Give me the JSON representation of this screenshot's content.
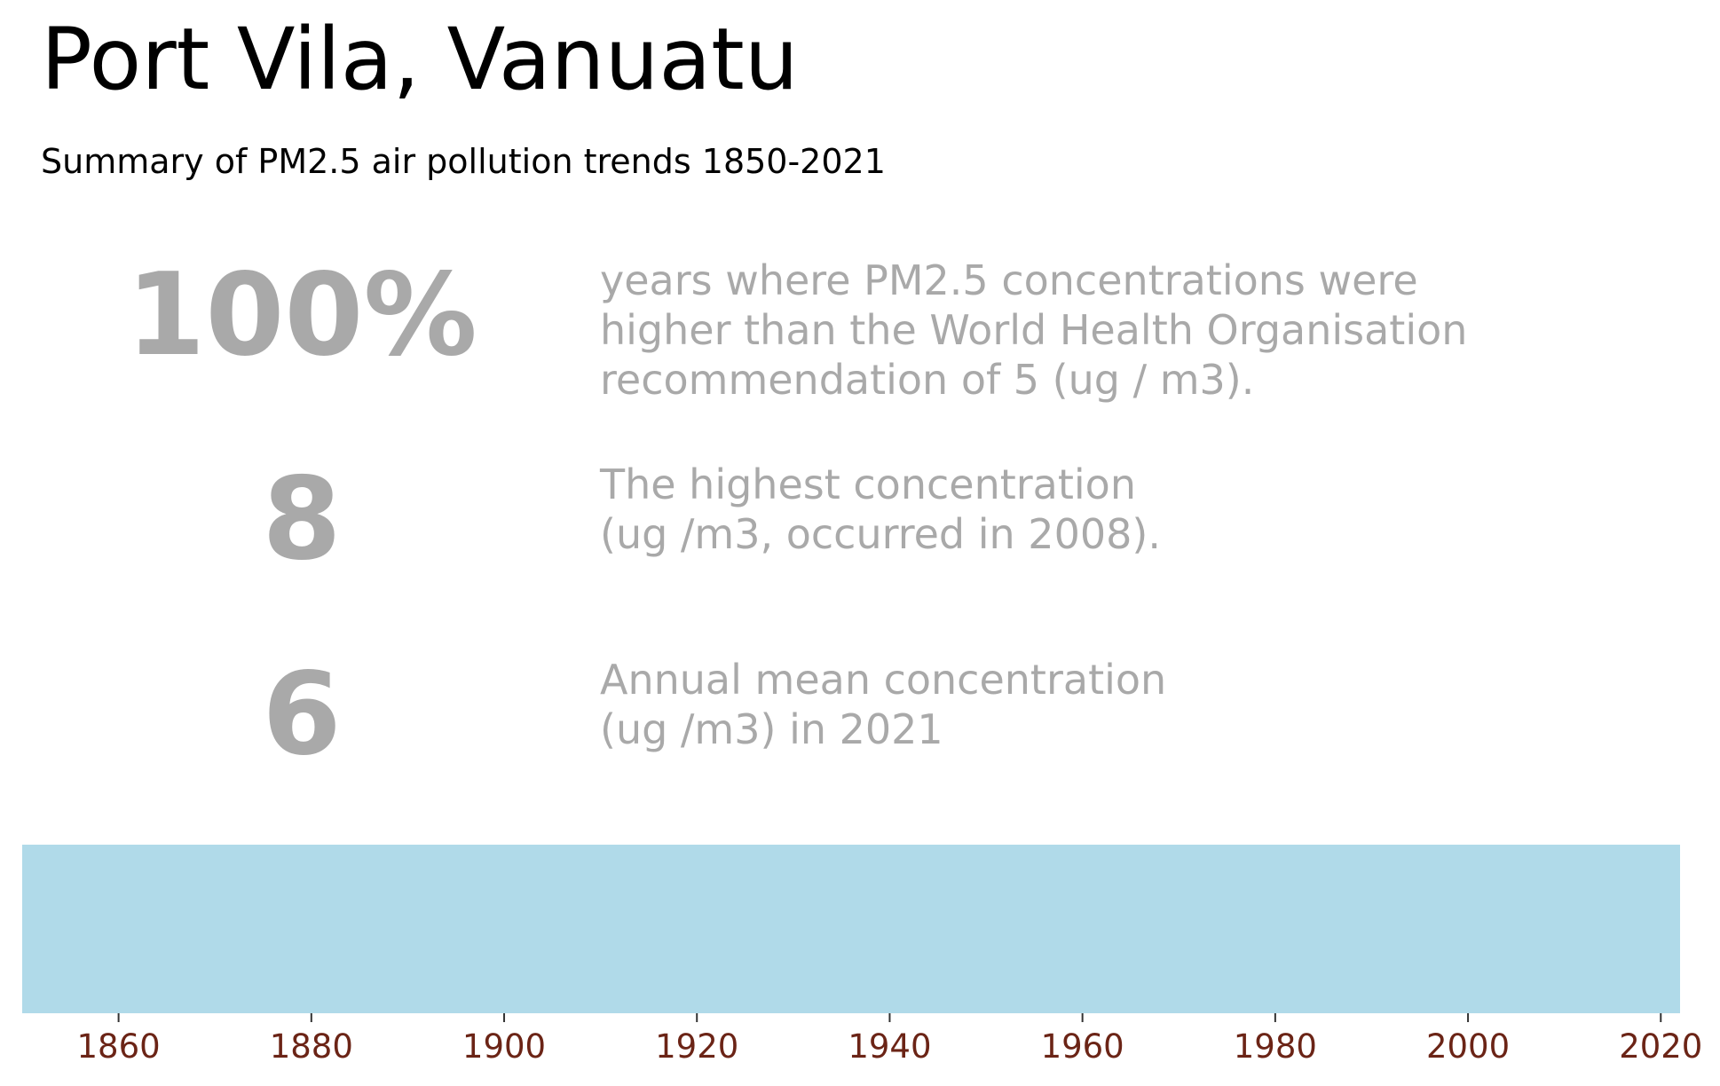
{
  "title": "Port Vila, Vanuatu",
  "subtitle": "Summary of PM2.5 air pollution trends 1850-2021",
  "stats": [
    {
      "value": "100%",
      "description": "years where PM2.5 concentrations were\nhigher than the World Health Organisation\nrecommendation of 5 (ug / m3)."
    },
    {
      "value": "8",
      "description": "The highest concentration\n(ug /m3, occurred in 2008)."
    },
    {
      "value": "6",
      "description": "Annual mean concentration\n(ug /m3) in 2021"
    }
  ],
  "chart_data": {
    "type": "heatmap",
    "title": "",
    "xlabel": "",
    "ylabel": "",
    "xlim": [
      1850,
      2022
    ],
    "x_ticks": [
      1860,
      1880,
      1900,
      1920,
      1940,
      1960,
      1980,
      2000,
      2020
    ],
    "grid": false,
    "legend": "none",
    "series": [
      {
        "x_range": [
          1850,
          2021
        ],
        "color": "#b0dae9"
      }
    ],
    "colors": {
      "stripe": "#b0dae9",
      "tick_label": "#6b2416",
      "stat_text": "#a9a9a9"
    }
  }
}
